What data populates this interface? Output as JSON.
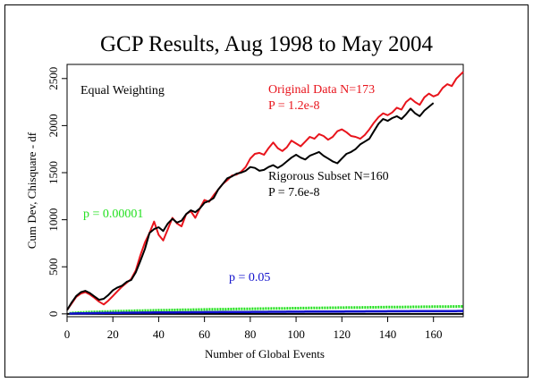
{
  "chart_data": {
    "type": "line",
    "title": "GCP Results, Aug 1998 to May 2004",
    "xlabel": "Number of Global Events",
    "ylabel": "Cum Dev, Chisquare - df",
    "xlim": [
      0,
      173
    ],
    "ylim": [
      -30,
      2650
    ],
    "xticks": [
      0,
      20,
      40,
      60,
      80,
      100,
      120,
      140,
      160
    ],
    "yticks": [
      0,
      500,
      1000,
      1500,
      2000,
      2500
    ],
    "grid": false,
    "annotations": {
      "weighting": "Equal Weighting",
      "original_label": "Original Data N=173",
      "original_p": "P = 1.2e-8",
      "subset_label": "Rigorous Subset N=160",
      "subset_p": "P = 7.6e-8",
      "p_high_label": "p = 0.00001",
      "p_low_label": "p = 0.05"
    },
    "colors": {
      "original": "#e8141c",
      "subset": "#000000",
      "p_high": "#22e01e",
      "p_low": "#1010cc",
      "axis": "#000000"
    },
    "series": [
      {
        "key": "original",
        "points": [
          [
            0,
            40
          ],
          [
            2,
            110
          ],
          [
            4,
            180
          ],
          [
            6,
            215
          ],
          [
            8,
            230
          ],
          [
            10,
            205
          ],
          [
            12,
            170
          ],
          [
            14,
            130
          ],
          [
            16,
            100
          ],
          [
            18,
            140
          ],
          [
            20,
            190
          ],
          [
            22,
            240
          ],
          [
            24,
            290
          ],
          [
            26,
            330
          ],
          [
            28,
            370
          ],
          [
            30,
            460
          ],
          [
            32,
            620
          ],
          [
            34,
            760
          ],
          [
            36,
            860
          ],
          [
            38,
            980
          ],
          [
            40,
            840
          ],
          [
            42,
            780
          ],
          [
            44,
            900
          ],
          [
            46,
            1020
          ],
          [
            48,
            960
          ],
          [
            50,
            930
          ],
          [
            52,
            1060
          ],
          [
            54,
            1090
          ],
          [
            56,
            1020
          ],
          [
            58,
            1120
          ],
          [
            60,
            1210
          ],
          [
            62,
            1190
          ],
          [
            64,
            1260
          ],
          [
            66,
            1320
          ],
          [
            68,
            1380
          ],
          [
            70,
            1420
          ],
          [
            72,
            1470
          ],
          [
            74,
            1480
          ],
          [
            76,
            1510
          ],
          [
            78,
            1560
          ],
          [
            80,
            1650
          ],
          [
            82,
            1700
          ],
          [
            84,
            1710
          ],
          [
            86,
            1690
          ],
          [
            88,
            1760
          ],
          [
            90,
            1820
          ],
          [
            92,
            1760
          ],
          [
            94,
            1730
          ],
          [
            96,
            1770
          ],
          [
            98,
            1840
          ],
          [
            100,
            1810
          ],
          [
            102,
            1780
          ],
          [
            104,
            1830
          ],
          [
            106,
            1880
          ],
          [
            108,
            1860
          ],
          [
            110,
            1910
          ],
          [
            112,
            1890
          ],
          [
            114,
            1850
          ],
          [
            116,
            1880
          ],
          [
            118,
            1940
          ],
          [
            120,
            1960
          ],
          [
            122,
            1930
          ],
          [
            124,
            1890
          ],
          [
            126,
            1880
          ],
          [
            128,
            1860
          ],
          [
            130,
            1900
          ],
          [
            132,
            1960
          ],
          [
            134,
            2030
          ],
          [
            136,
            2090
          ],
          [
            138,
            2130
          ],
          [
            140,
            2110
          ],
          [
            142,
            2140
          ],
          [
            144,
            2190
          ],
          [
            146,
            2170
          ],
          [
            148,
            2250
          ],
          [
            150,
            2290
          ],
          [
            152,
            2250
          ],
          [
            154,
            2220
          ],
          [
            156,
            2300
          ],
          [
            158,
            2340
          ],
          [
            160,
            2310
          ],
          [
            162,
            2330
          ],
          [
            164,
            2400
          ],
          [
            166,
            2440
          ],
          [
            168,
            2420
          ],
          [
            170,
            2500
          ],
          [
            173,
            2570
          ]
        ]
      },
      {
        "key": "subset",
        "points": [
          [
            0,
            40
          ],
          [
            2,
            120
          ],
          [
            4,
            190
          ],
          [
            6,
            230
          ],
          [
            8,
            245
          ],
          [
            10,
            220
          ],
          [
            12,
            185
          ],
          [
            14,
            150
          ],
          [
            16,
            160
          ],
          [
            18,
            200
          ],
          [
            20,
            250
          ],
          [
            22,
            280
          ],
          [
            24,
            300
          ],
          [
            26,
            340
          ],
          [
            28,
            360
          ],
          [
            30,
            440
          ],
          [
            32,
            560
          ],
          [
            34,
            690
          ],
          [
            36,
            860
          ],
          [
            38,
            900
          ],
          [
            40,
            920
          ],
          [
            42,
            880
          ],
          [
            44,
            960
          ],
          [
            46,
            1010
          ],
          [
            48,
            970
          ],
          [
            50,
            990
          ],
          [
            52,
            1060
          ],
          [
            54,
            1100
          ],
          [
            56,
            1080
          ],
          [
            58,
            1120
          ],
          [
            60,
            1180
          ],
          [
            62,
            1200
          ],
          [
            64,
            1230
          ],
          [
            66,
            1320
          ],
          [
            68,
            1380
          ],
          [
            70,
            1440
          ],
          [
            72,
            1460
          ],
          [
            74,
            1490
          ],
          [
            76,
            1500
          ],
          [
            78,
            1520
          ],
          [
            80,
            1560
          ],
          [
            82,
            1550
          ],
          [
            84,
            1520
          ],
          [
            86,
            1530
          ],
          [
            88,
            1560
          ],
          [
            90,
            1580
          ],
          [
            92,
            1550
          ],
          [
            94,
            1580
          ],
          [
            96,
            1620
          ],
          [
            98,
            1660
          ],
          [
            100,
            1690
          ],
          [
            102,
            1660
          ],
          [
            104,
            1640
          ],
          [
            106,
            1680
          ],
          [
            108,
            1700
          ],
          [
            110,
            1720
          ],
          [
            112,
            1680
          ],
          [
            114,
            1650
          ],
          [
            116,
            1620
          ],
          [
            118,
            1600
          ],
          [
            120,
            1650
          ],
          [
            122,
            1700
          ],
          [
            124,
            1720
          ],
          [
            126,
            1750
          ],
          [
            128,
            1800
          ],
          [
            130,
            1830
          ],
          [
            132,
            1860
          ],
          [
            134,
            1940
          ],
          [
            136,
            2020
          ],
          [
            138,
            2070
          ],
          [
            140,
            2050
          ],
          [
            142,
            2080
          ],
          [
            144,
            2100
          ],
          [
            146,
            2070
          ],
          [
            148,
            2120
          ],
          [
            150,
            2180
          ],
          [
            152,
            2130
          ],
          [
            154,
            2100
          ],
          [
            156,
            2160
          ],
          [
            158,
            2200
          ],
          [
            160,
            2240
          ]
        ]
      }
    ],
    "envelopes": [
      {
        "key": "p_high",
        "label": "p = 0.00001",
        "z": 4.265
      },
      {
        "key": "p_low",
        "label": "p = 0.05",
        "z": 1.645
      }
    ]
  }
}
